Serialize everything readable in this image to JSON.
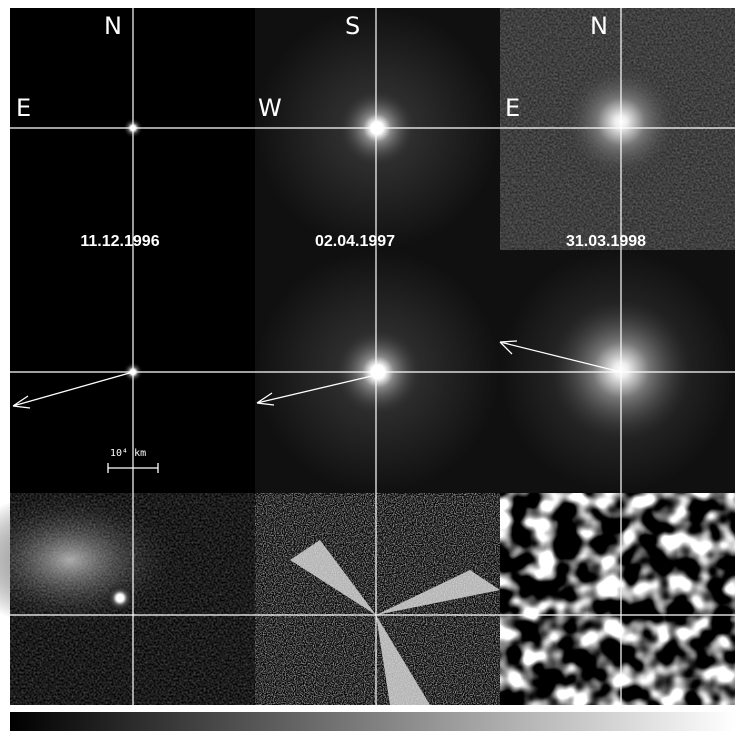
{
  "panels": [
    {
      "top_label": "N",
      "side_label": "E",
      "date": "11.12.1996"
    },
    {
      "top_label": "S",
      "side_label": "W",
      "date": "02.04.1997"
    },
    {
      "top_label": "N",
      "side_label": "E",
      "date": "31.03.1998"
    }
  ],
  "scale_bar": {
    "label": "10⁴ km"
  }
}
